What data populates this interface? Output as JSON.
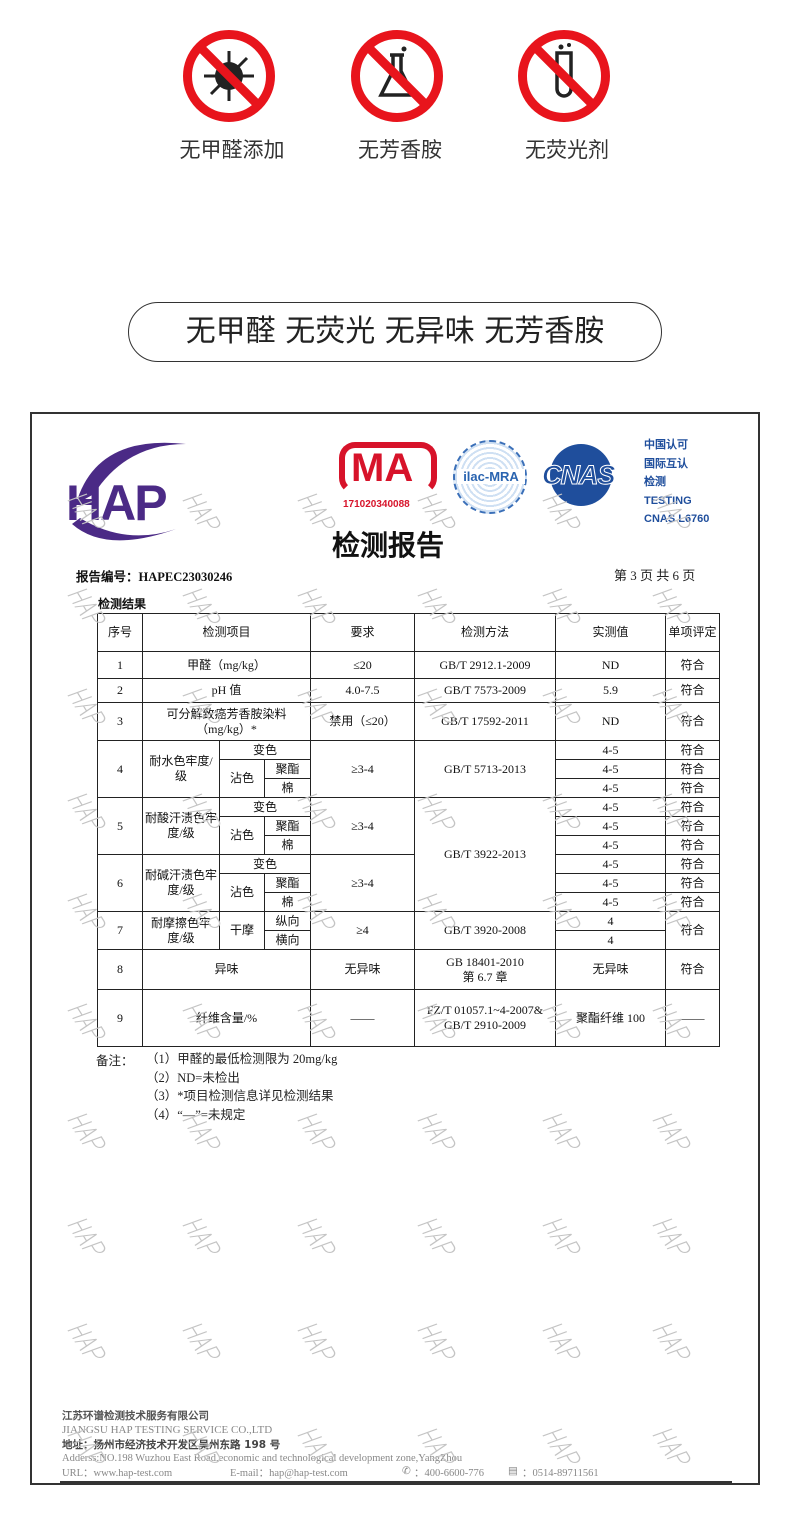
{
  "features": [
    {
      "icon": "no-formaldehyde-icon",
      "label": "无甲醛添加"
    },
    {
      "icon": "no-aromatic-amine-icon",
      "label": "无芳香胺"
    },
    {
      "icon": "no-fluorescent-agent-icon",
      "label": "无荧光剂"
    }
  ],
  "banner": "无甲醛 无荧光 无异味 无芳香胺",
  "colors": {
    "prohibit_red": "#e8141c",
    "hap_purple": "#4b2a86",
    "cnas_blue": "#1f4e9c",
    "cma_red": "#d7132a"
  },
  "report": {
    "hap_logo": "HAP",
    "cma": {
      "text": "MA",
      "number": "171020340088"
    },
    "ilac": "ilac-MRA",
    "cnas": "CNAS",
    "cert_lines": [
      "中国认可",
      "国际互认",
      "检测",
      "TESTING",
      "CNAS L6760"
    ],
    "title": "检测报告",
    "report_no": "报告编号：HAPEC23030246",
    "page": "第 3 页 共 6 页",
    "section": "检测结果",
    "watermark": "HAP",
    "headers": [
      "序号",
      "检测项目",
      "要求",
      "检测方法",
      "实测值",
      "单项评定"
    ],
    "rows": {
      "r1": [
        "1",
        "甲醛（mg/kg）",
        "≤20",
        "GB/T 2912.1-2009",
        "ND",
        "符合"
      ],
      "r2": [
        "2",
        "pH 值",
        "4.0-7.5",
        "GB/T 7573-2009",
        "5.9",
        "符合"
      ],
      "r3": [
        "3",
        "可分解致癌芳香胺染料（mg/kg）*",
        "禁用（≤20）",
        "GB/T 17592-2011",
        "ND",
        "符合"
      ],
      "r4": {
        "no": "4",
        "item": "耐水色牢度/级",
        "req": "≥3-4",
        "method": "GB/T 5713-2013",
        "values": [
          "4-5",
          "4-5",
          "4-5"
        ],
        "ratings": [
          "符合",
          "符合",
          "符合"
        ]
      },
      "r5": {
        "no": "5",
        "item": "耐酸汗渍色牢度/级",
        "req": "≥3-4",
        "method": "GB/T 3922-2013",
        "values": [
          "4-5",
          "4-5",
          "4-5"
        ],
        "ratings": [
          "符合",
          "符合",
          "符合"
        ]
      },
      "r6": {
        "no": "6",
        "item": "耐碱汗渍色牢度/级",
        "req": "≥3-4",
        "values": [
          "4-5",
          "4-5",
          "4-5"
        ],
        "ratings": [
          "符合",
          "符合",
          "符合"
        ]
      },
      "sub": {
        "change": "变色",
        "stain": "沾色",
        "polyester": "聚酯",
        "cotton": "棉"
      },
      "r7": {
        "no": "7",
        "item": "耐摩擦色牢度/级",
        "dry": "干摩",
        "dirs": [
          "纵向",
          "横向"
        ],
        "req": "≥4",
        "method": "GB/T 3920-2008",
        "values": [
          "4",
          "4"
        ],
        "rating": "符合"
      },
      "r8": [
        "8",
        "异味",
        "无异味",
        "GB 18401-2010 第 6.7 章",
        "无异味",
        "符合"
      ],
      "r9": [
        "9",
        "纤维含量/%",
        "——",
        "FZ/T 01057.1~4-2007& GB/T 2910-2009",
        "聚酯纤维 100",
        "——"
      ]
    },
    "notes_label": "备注：",
    "notes": [
      "（1）甲醛的最低检测限为 20mg/kg",
      "（2）ND=未检出",
      "（3）*项目检测信息详见检测结果",
      "（4）“—”=未规定"
    ],
    "footer": {
      "company_cn": "江苏环谱检测技术服务有限公司",
      "company_en": "JIANGSU HAP TESTING SERVICE CO.,LTD",
      "address_cn": "地址：扬州市经济技术开发区吴州东路 198 号",
      "address_en": "Adderss:NO.198 Wuzhou East Road,economic and technological development zone,YangZhou",
      "url": "URL：www.hap-test.com",
      "email": "E-mail：hap@hap-test.com",
      "phone": "：400-6600-776",
      "fax": "：0514-89711561"
    }
  }
}
